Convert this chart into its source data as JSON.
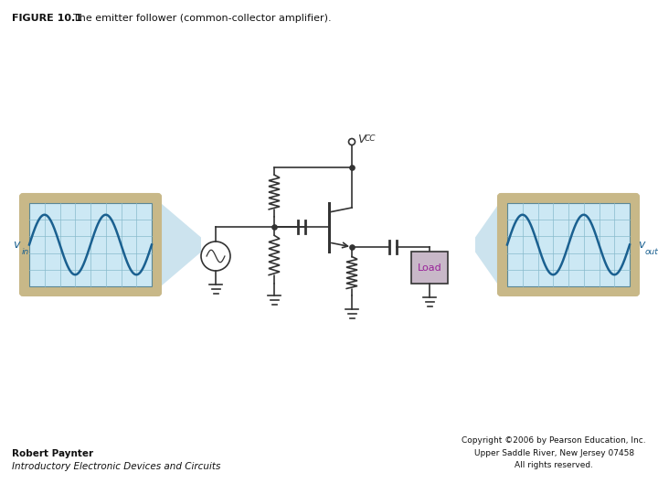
{
  "title_bold": "FIGURE 10.1",
  "title_text": "The emitter follower (common-collector amplifier).",
  "author_bold": "Robert Paynter",
  "author_italic": "Introductory Electronic Devices and Circuits",
  "copyright": "Copyright ©2006 by Pearson Education, Inc.\nUpper Saddle River, New Jersey 07458\nAll rights reserved.",
  "bg_color": "#ffffff",
  "osc_bg": "#cce8f4",
  "osc_border": "#c8b888",
  "osc_grid_color": "#88bbcc",
  "wave_color": "#1a6090",
  "cone_color": "#c0dcea",
  "circuit_color": "#333333",
  "load_fill": "#c8b8c8",
  "vin_label": "v",
  "vin_sub": "in",
  "vout_label": "v",
  "vout_sub": "out",
  "vcc_label": "V",
  "vcc_sub": "CC",
  "load_label": "Load"
}
